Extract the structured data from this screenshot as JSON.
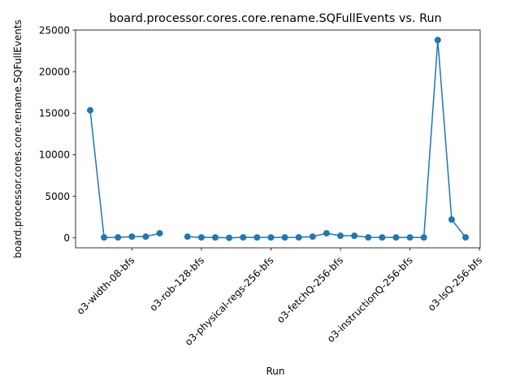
{
  "chart_data": {
    "type": "line",
    "title": "board.processor.cores.core.rename.SQFullEvents vs. Run",
    "xlabel": "Run",
    "ylabel": "board.processor.cores.core.rename.SQFullEvents",
    "ylim": [
      -1200,
      25000
    ],
    "yticks": [
      0,
      5000,
      10000,
      15000,
      20000,
      25000
    ],
    "xtick_labels": [
      {
        "index": 3,
        "label": "o3-width-08-bfs"
      },
      {
        "index": 8,
        "label": "o3-rob-128-bfs"
      },
      {
        "index": 13,
        "label": "o3-physical-regs-256-bfs"
      },
      {
        "index": 18,
        "label": "o3-fetchQ-256-bfs"
      },
      {
        "index": 23,
        "label": "o3-instructionQ-256-bfs"
      },
      {
        "index": 28,
        "label": "o3-lsQ-256-bfs"
      }
    ],
    "grid": false,
    "color": "#1f77b4",
    "series": [
      {
        "segments": [
          {
            "x": [
              0,
              1,
              2,
              3,
              4,
              5
            ],
            "y": [
              15350,
              50,
              60,
              150,
              150,
              550
            ]
          },
          {
            "x": [
              7,
              8,
              9,
              10,
              11,
              12,
              13,
              14,
              15,
              16,
              17,
              18,
              19,
              20,
              21,
              22,
              23,
              24,
              25,
              26,
              27
            ],
            "y": [
              150,
              50,
              50,
              0,
              60,
              50,
              50,
              50,
              60,
              150,
              550,
              250,
              250,
              60,
              50,
              50,
              50,
              50,
              23800,
              2200,
              60
            ]
          }
        ]
      }
    ]
  }
}
